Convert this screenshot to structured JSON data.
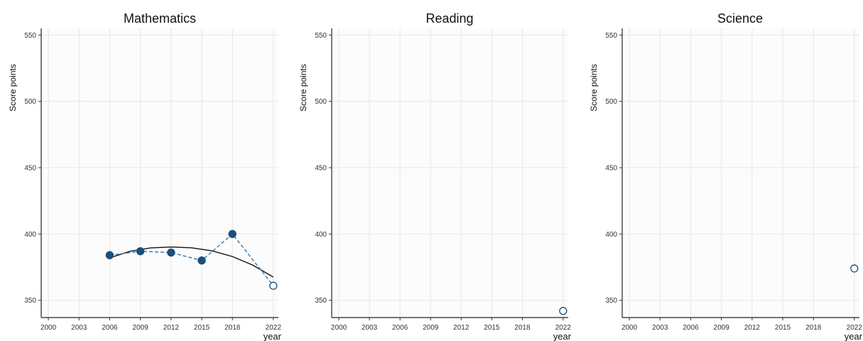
{
  "chart_data": [
    {
      "type": "line",
      "title": "Mathematics",
      "xlabel": "year",
      "ylabel": "Score points",
      "x_ticks": [
        "2000",
        "2003",
        "2006",
        "2009",
        "2012",
        "2015",
        "2018",
        "2022"
      ],
      "y_ticks": [
        "350",
        "400",
        "450",
        "500",
        "550"
      ],
      "xlim": [
        1999.3,
        2022.5
      ],
      "ylim": [
        337,
        555
      ],
      "grid": true,
      "series": [
        {
          "kind": "observed",
          "style": "dashed-line-filled-markers",
          "x": [
            2006,
            2009,
            2012,
            2015,
            2018
          ],
          "y": [
            384,
            387,
            386,
            380,
            400
          ]
        },
        {
          "kind": "latest",
          "style": "hollow-marker",
          "x": [
            2022
          ],
          "y": [
            361
          ]
        },
        {
          "kind": "trend",
          "style": "solid-curve",
          "x": [
            2006,
            2008,
            2010,
            2012,
            2014,
            2016,
            2018,
            2020,
            2022
          ],
          "y": [
            382,
            387,
            389.5,
            390.2,
            389.6,
            387.3,
            383,
            376.5,
            367.5
          ]
        }
      ],
      "connect_latest": true
    },
    {
      "type": "line",
      "title": "Reading",
      "xlabel": "year",
      "ylabel": "Score points",
      "x_ticks": [
        "2000",
        "2003",
        "2006",
        "2009",
        "2012",
        "2015",
        "2018",
        "2022"
      ],
      "y_ticks": [
        "350",
        "400",
        "450",
        "500",
        "550"
      ],
      "xlim": [
        1999.3,
        2022.5
      ],
      "ylim": [
        337,
        555
      ],
      "grid": true,
      "series": [
        {
          "kind": "latest",
          "style": "hollow-marker",
          "x": [
            2022
          ],
          "y": [
            342
          ]
        }
      ],
      "connect_latest": false
    },
    {
      "type": "line",
      "title": "Science",
      "xlabel": "year",
      "ylabel": "Score points",
      "x_ticks": [
        "2000",
        "2003",
        "2006",
        "2009",
        "2012",
        "2015",
        "2018",
        "2022"
      ],
      "y_ticks": [
        "350",
        "400",
        "450",
        "500",
        "550"
      ],
      "xlim": [
        1999.3,
        2022.5
      ],
      "ylim": [
        337,
        555
      ],
      "grid": true,
      "series": [
        {
          "kind": "latest",
          "style": "hollow-marker",
          "x": [
            2022
          ],
          "y": [
            374
          ]
        }
      ],
      "connect_latest": false
    }
  ],
  "colors": {
    "marker": "#1b4f7c",
    "dashed_line": "#2a7ab8",
    "trend": "#111111",
    "grid": "#e6e6e6",
    "plot_bg": "#fcfcfc"
  }
}
